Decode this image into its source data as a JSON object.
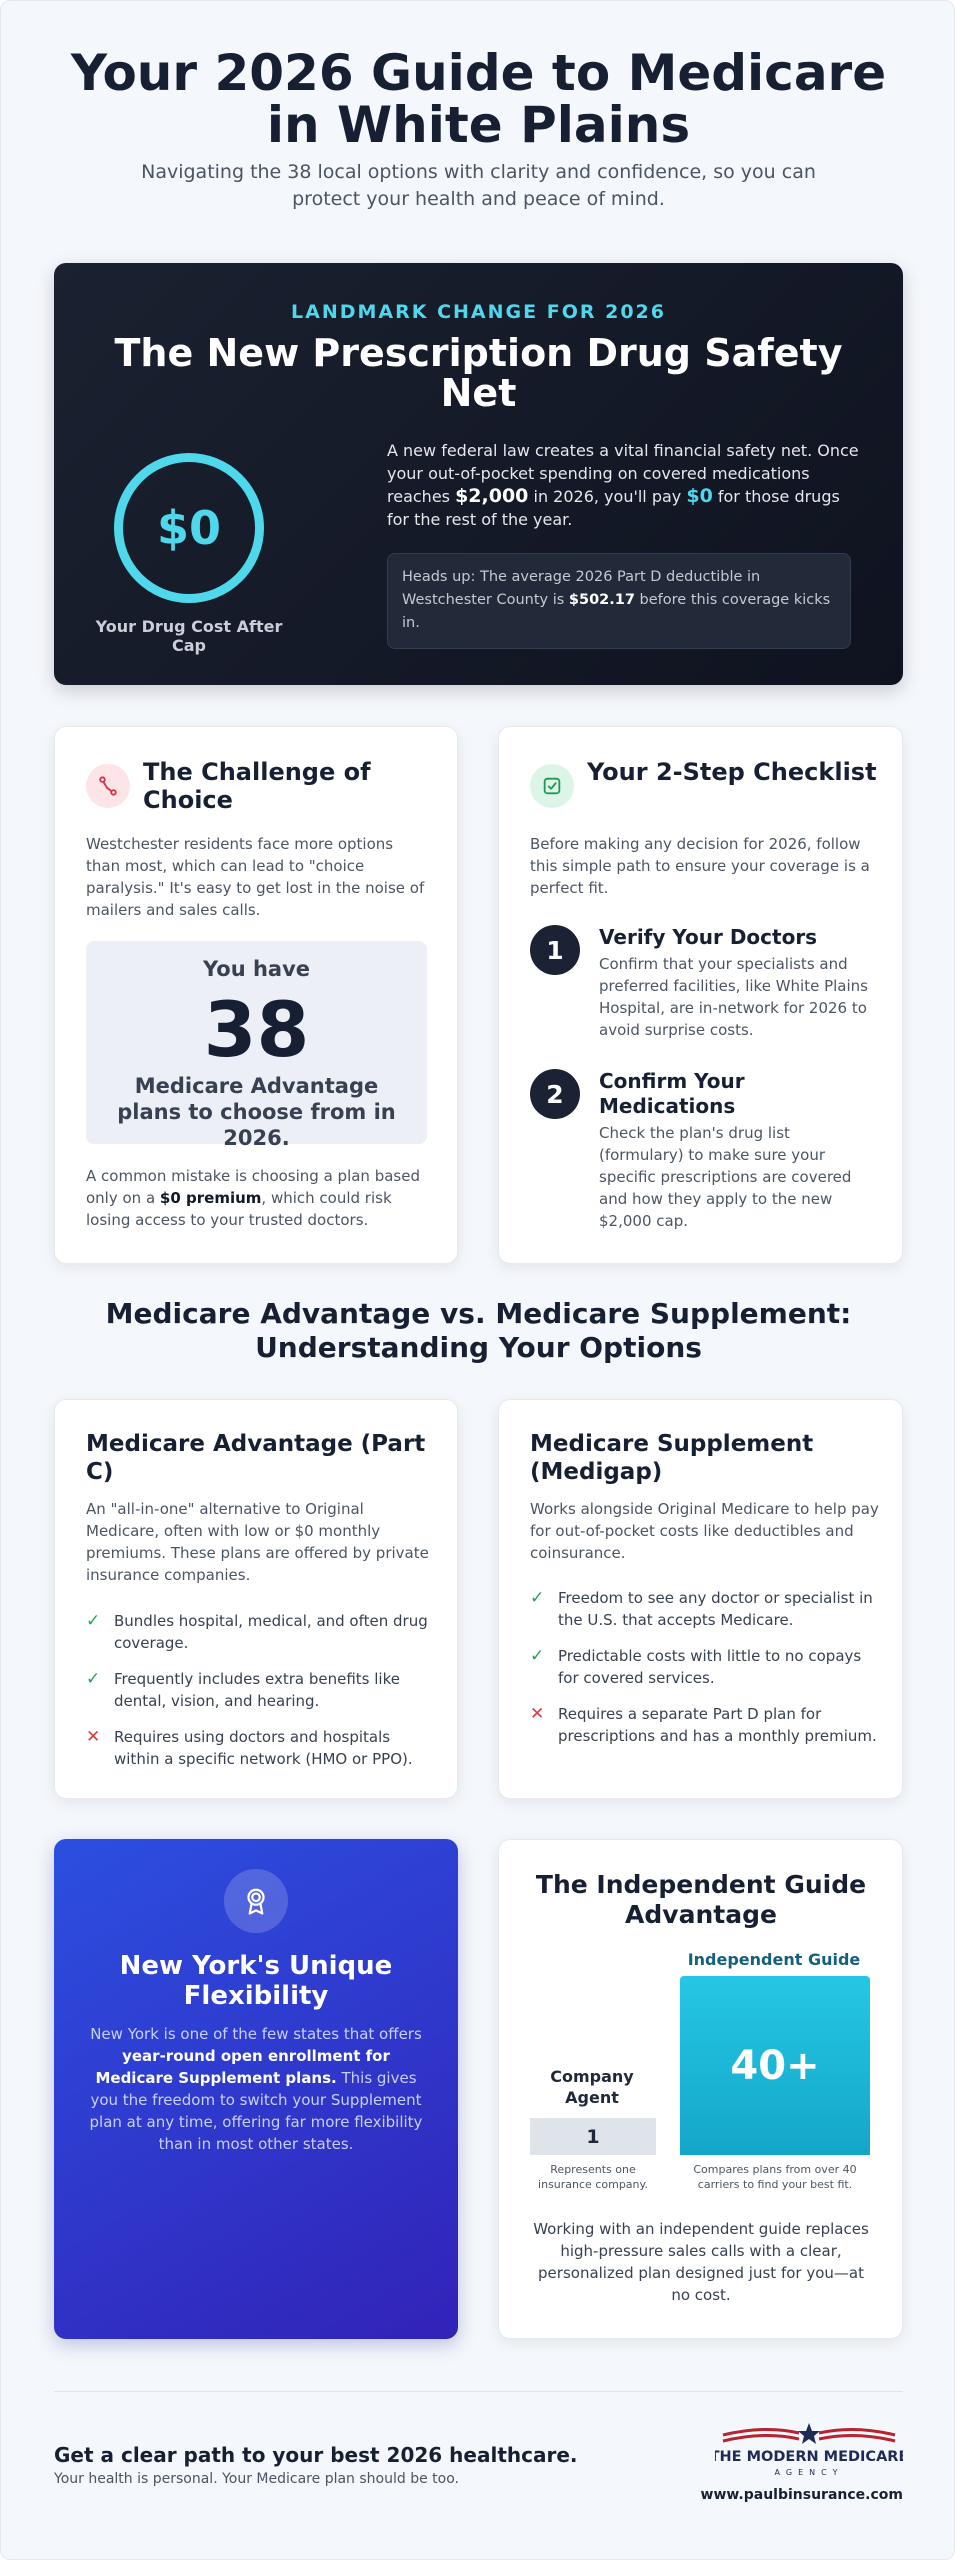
{
  "header": {
    "title": "Your 2026 Guide to Medicare in White Plains",
    "subtitle": "Navigating the 38 local options with clarity and confidence, so you can protect your health and peace of mind."
  },
  "drug_cap": {
    "eyebrow": "LANDMARK CHANGE FOR 2026",
    "title": "The New Prescription Drug Safety Net",
    "cap_value": "$0",
    "cap_label": "Your Drug Cost After Cap",
    "body_1": "A new federal law creates a vital financial safety net. Once your out-of-pocket spending on covered medications reaches ",
    "body_amount": "$2,000",
    "body_2": " in 2026, you'll pay ",
    "body_zero": "$0",
    "body_3": " for those drugs for the rest of the year.",
    "headsup_1": "Heads up: The average 2026 Part D deductible in Westchester County is ",
    "headsup_amount": "$502.17",
    "headsup_2": " before this coverage kicks in."
  },
  "challenge": {
    "icon": "route-icon",
    "title": "The Challenge of Choice",
    "intro": "Westchester residents face more options than most, which can lead to \"choice paralysis.\" It's easy to get lost in the noise of mailers and sales calls.",
    "count_pre": "You have",
    "count": "38",
    "count_post": "Medicare Advantage plans to choose from in 2026.",
    "note_1": "A common mistake is choosing a plan based only on a ",
    "note_bold": "$0 premium",
    "note_2": ", which could risk losing access to your trusted doctors."
  },
  "checklist": {
    "icon": "check-square-icon",
    "title": "Your 2-Step Checklist",
    "intro": "Before making any decision for 2026, follow this simple path to ensure your coverage is a perfect fit.",
    "steps": [
      {
        "num": "1",
        "title": "Verify Your Doctors",
        "text": "Confirm that your specialists and preferred facilities, like White Plains Hospital, are in-network for 2026 to avoid surprise costs."
      },
      {
        "num": "2",
        "title": "Confirm Your Medications",
        "text": "Check the plan's drug list (formulary) to make sure your specific prescriptions are covered and how they apply to the new $2,000 cap."
      }
    ]
  },
  "comparison": {
    "title": "Medicare Advantage vs. Medicare Supplement: Understanding Your Options",
    "advantage": {
      "title": "Medicare Advantage (Part C)",
      "intro": "An \"all-in-one\" alternative to Original Medicare, often with low or $0 monthly premiums. These plans are offered by private insurance companies.",
      "points": [
        {
          "type": "check",
          "text": "Bundles hospital, medical, and often drug coverage."
        },
        {
          "type": "check",
          "text": "Frequently includes extra benefits like dental, vision, and hearing."
        },
        {
          "type": "cross",
          "text": "Requires using doctors and hospitals within a specific network (HMO or PPO)."
        }
      ]
    },
    "supplement": {
      "title": "Medicare Supplement (Medigap)",
      "intro": "Works alongside Original Medicare to help pay for out-of-pocket costs like deductibles and coinsurance.",
      "points": [
        {
          "type": "check",
          "text": "Freedom to see any doctor or specialist in the U.S. that accepts Medicare."
        },
        {
          "type": "check",
          "text": "Predictable costs with little to no copays for covered services."
        },
        {
          "type": "cross",
          "text": "Requires a separate Part D plan for prescriptions and has a monthly premium."
        }
      ]
    }
  },
  "ny": {
    "icon": "award-icon",
    "title": "New York's Unique Flexibility",
    "text_1": "New York is one of the few states that offers ",
    "text_bold": "year-round open enrollment for Medicare Supplement plans.",
    "text_2": " This gives you the freedom to switch your Supplement plan at any time, offering far more flexibility than in most other states."
  },
  "guide": {
    "title": "The Independent Guide Advantage",
    "chart_data": {
      "type": "bar",
      "categories": [
        "Company Agent",
        "Independent Guide"
      ],
      "values": [
        1,
        40
      ],
      "value_labels": [
        "1",
        "40+"
      ],
      "captions": [
        "Represents one insurance company.",
        "Compares plans from over 40 carriers to find your best fit."
      ],
      "colors": [
        "#dfe3ea",
        "#1fb8d8"
      ]
    },
    "footer": "Working with an independent guide replaces high-pressure sales calls with a clear, personalized plan designed just for you—at no cost."
  },
  "footer": {
    "headline": "Get a clear path to your best 2026 healthcare.",
    "tagline": "Your health is personal. Your Medicare plan should be too.",
    "brand_name": "THE MODERN MEDICARE",
    "brand_sub": "AGENCY",
    "url": "www.paulbinsurance.com"
  }
}
